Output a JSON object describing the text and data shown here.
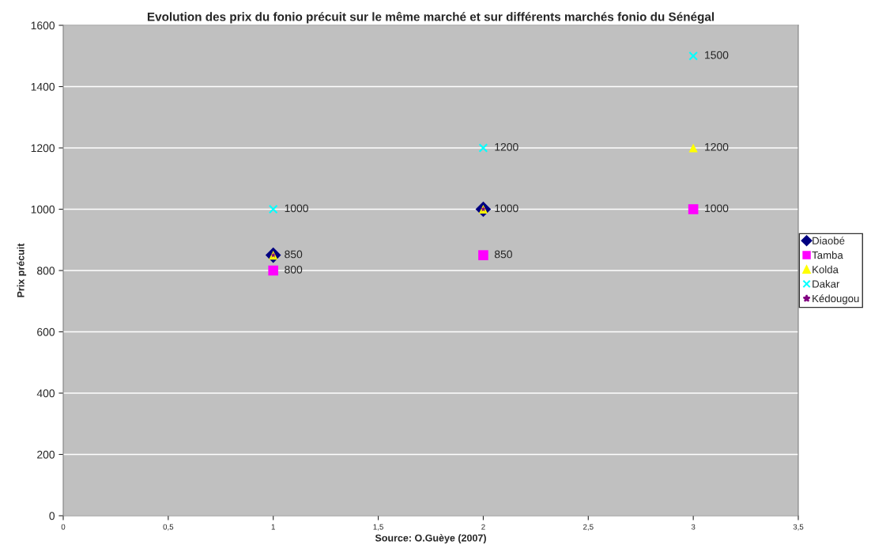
{
  "chart_data": {
    "type": "scatter",
    "title": "Evolution des prix du fonio précuit sur le même marché et sur différents marchés fonio du Sénégal",
    "ylabel": "Prix précuit",
    "annotations": [
      "Source: O.Guèye (2007)"
    ],
    "x": [
      1,
      2,
      3
    ],
    "series": [
      {
        "name": "Diaobé",
        "color": "#000080",
        "marker": "diamond",
        "values": [
          850,
          1000,
          null
        ],
        "value_labels": [
          "850",
          "1000",
          null
        ]
      },
      {
        "name": "Tamba",
        "color": "#ff00ff",
        "marker": "square",
        "values": [
          800,
          850,
          1000
        ],
        "value_labels": [
          "800",
          "850",
          "1000"
        ]
      },
      {
        "name": "Kolda",
        "color": "#ffff00",
        "marker": "triangle",
        "values": [
          850,
          1000,
          1200
        ],
        "value_labels": [
          null,
          null,
          "1200"
        ]
      },
      {
        "name": "Dakar",
        "color": "#00ffff",
        "marker": "cross",
        "values": [
          1000,
          1200,
          1500
        ],
        "value_labels": [
          "1000",
          "1200",
          "1500"
        ]
      },
      {
        "name": "Kédougou",
        "color": "#800080",
        "marker": "star",
        "values": [
          850,
          1000,
          null
        ],
        "value_labels": [
          null,
          null,
          null
        ]
      }
    ],
    "xlim": [
      0,
      3.5
    ],
    "xticks": [
      0,
      {
        "value": 0.5,
        "label": "0,5"
      },
      1,
      {
        "value": 1.5,
        "label": "1,5"
      },
      2,
      {
        "value": 2.5,
        "label": "2,5"
      },
      3,
      {
        "value": 3.5,
        "label": "3,5"
      }
    ],
    "ylim": [
      0,
      1600
    ],
    "yticks": [
      0,
      200,
      400,
      600,
      800,
      1000,
      1200,
      1400,
      1600
    ],
    "grid": "y",
    "legend": "right"
  }
}
